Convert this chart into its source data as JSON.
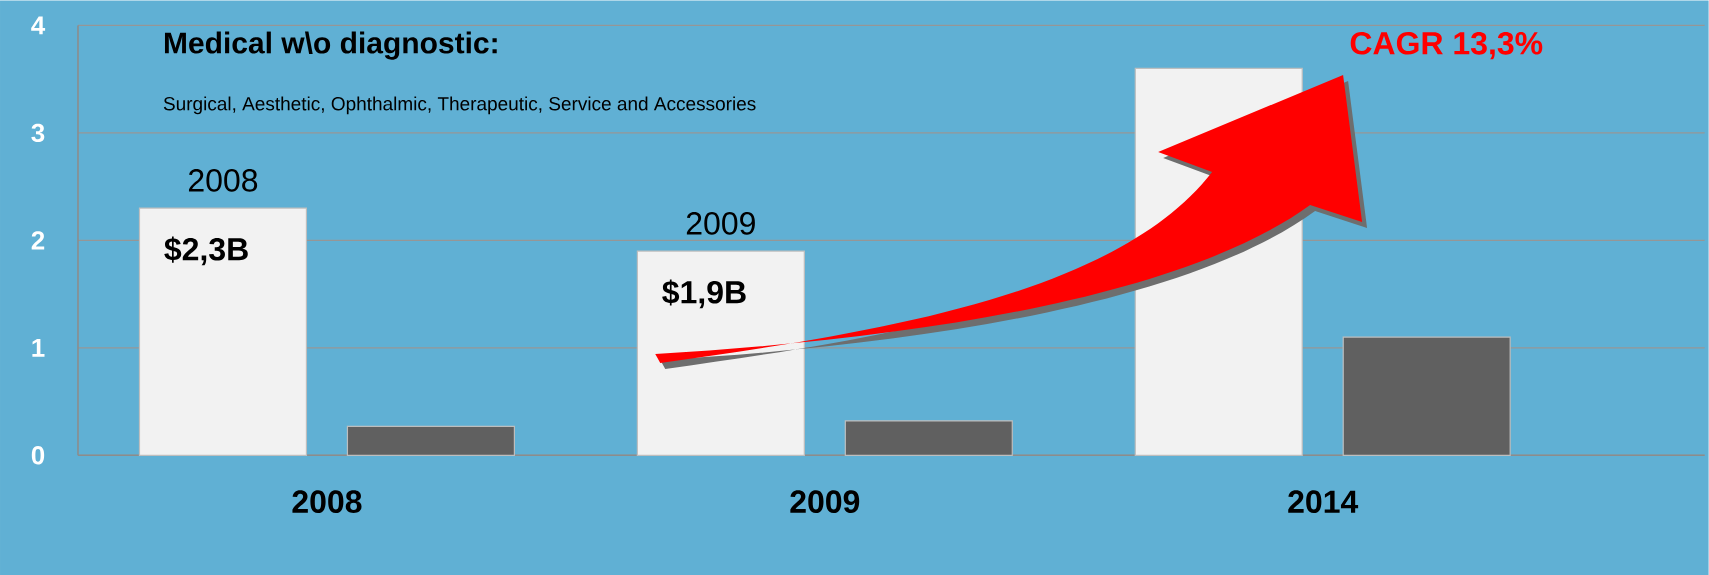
{
  "chart_data": {
    "type": "bar",
    "title": "Medical w\\o diagnostic:",
    "subtitle": "Surgical, Aesthetic, Ophthalmic, Therapeutic, Service and  Accessories",
    "categories": [
      "2008",
      "2009",
      "2014"
    ],
    "series": [
      {
        "color": "#f2f2f2",
        "values": [
          2.3,
          1.9,
          3.6
        ],
        "value_labels": [
          "$2,3B",
          "$1,9B",
          null
        ]
      },
      {
        "color": "#606060",
        "values": [
          0.27,
          0.32,
          1.1
        ]
      }
    ],
    "ylim": [
      0,
      4
    ],
    "yticks": [
      0,
      1,
      2,
      3,
      4
    ],
    "grid": "y",
    "annotations": [
      "CAGR 13,3%",
      "2008",
      "2009"
    ]
  }
}
